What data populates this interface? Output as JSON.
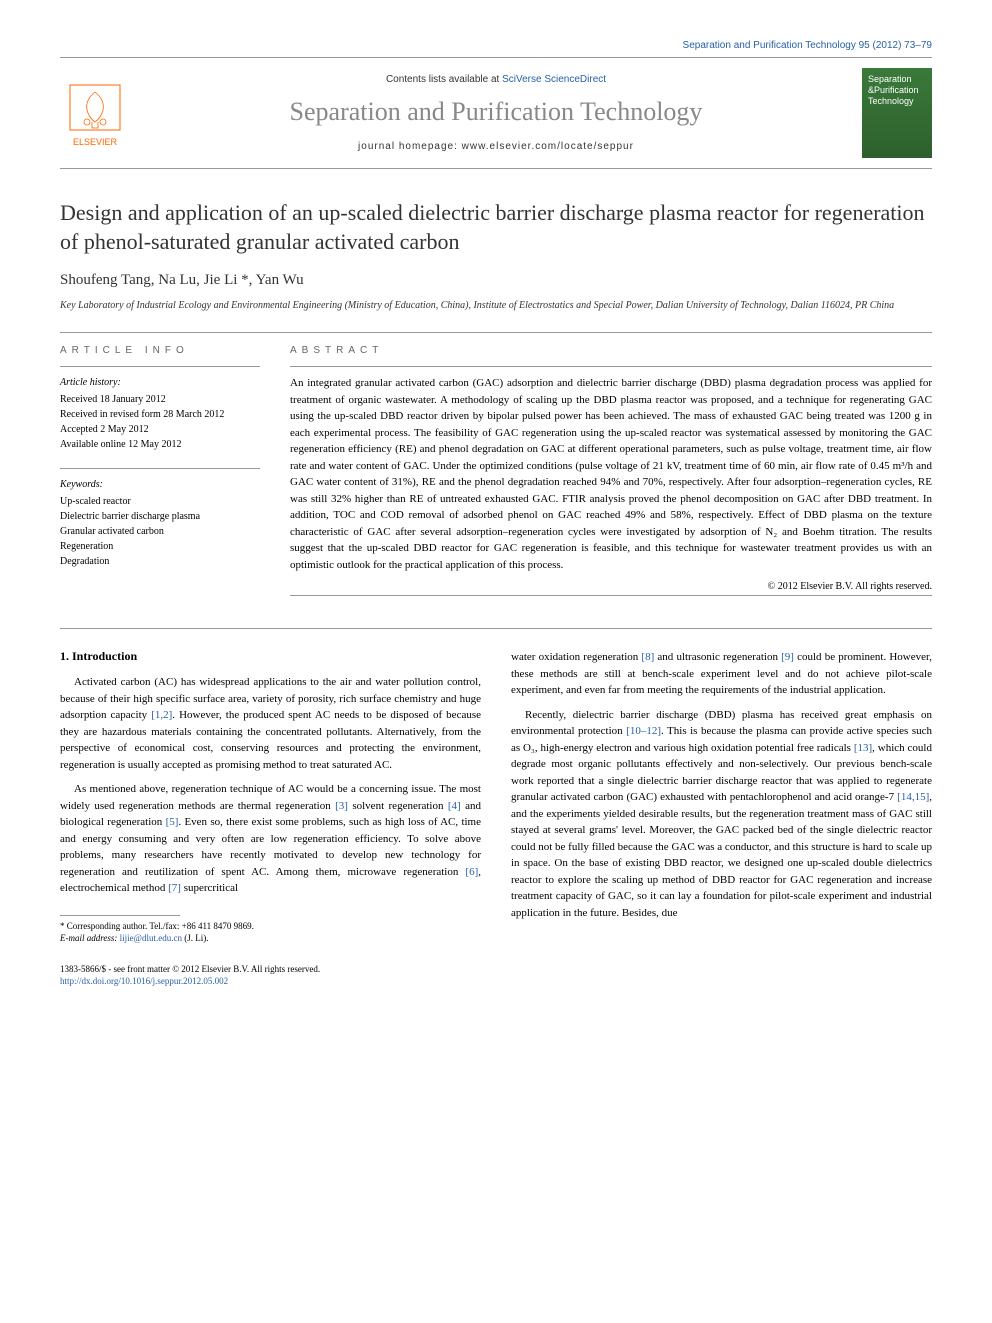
{
  "header": {
    "citation": "Separation and Purification Technology 95 (2012) 73–79",
    "contents_prefix": "Contents lists available at ",
    "contents_link": "SciVerse ScienceDirect",
    "journal_title": "Separation and Purification Technology",
    "homepage_label": "journal homepage: www.elsevier.com/locate/seppur",
    "publisher": "ELSEVIER",
    "cover_text": "Separation &Purification Technology"
  },
  "article": {
    "title": "Design and application of an up-scaled dielectric barrier discharge plasma reactor for regeneration of phenol-saturated granular activated carbon",
    "authors_html": "Shoufeng Tang, Na Lu, Jie Li *, Yan Wu",
    "affiliation": "Key Laboratory of Industrial Ecology and Environmental Engineering (Ministry of Education, China), Institute of Electrostatics and Special Power, Dalian University of Technology, Dalian 116024, PR China"
  },
  "info": {
    "heading": "ARTICLE INFO",
    "history_label": "Article history:",
    "history": [
      "Received 18 January 2012",
      "Received in revised form 28 March 2012",
      "Accepted 2 May 2012",
      "Available online 12 May 2012"
    ],
    "keywords_label": "Keywords:",
    "keywords": [
      "Up-scaled reactor",
      "Dielectric barrier discharge plasma",
      "Granular activated carbon",
      "Regeneration",
      "Degradation"
    ]
  },
  "abstract": {
    "heading": "ABSTRACT",
    "text": "An integrated granular activated carbon (GAC) adsorption and dielectric barrier discharge (DBD) plasma degradation process was applied for treatment of organic wastewater. A methodology of scaling up the DBD plasma reactor was proposed, and a technique for regenerating GAC using the up-scaled DBD reactor driven by bipolar pulsed power has been achieved. The mass of exhausted GAC being treated was 1200 g in each experimental process. The feasibility of GAC regeneration using the up-scaled reactor was systematical assessed by monitoring the GAC regeneration efficiency (RE) and phenol degradation on GAC at different operational parameters, such as pulse voltage, treatment time, air flow rate and water content of GAC. Under the optimized conditions (pulse voltage of 21 kV, treatment time of 60 min, air flow rate of 0.45 m³/h and GAC water content of 31%), RE and the phenol degradation reached 94% and 70%, respectively. After four adsorption–regeneration cycles, RE was still 32% higher than RE of untreated exhausted GAC. FTIR analysis proved the phenol decomposition on GAC after DBD treatment. In addition, TOC and COD removal of adsorbed phenol on GAC reached 49% and 58%, respectively. Effect of DBD plasma on the texture characteristic of GAC after several adsorption–regeneration cycles were investigated by adsorption of N₂ and Boehm titration. The results suggest that the up-scaled DBD reactor for GAC regeneration is feasible, and this technique for wastewater treatment provides us with an optimistic outlook for the practical application of this process.",
    "copyright": "© 2012 Elsevier B.V. All rights reserved."
  },
  "body": {
    "section1_heading": "1. Introduction",
    "p1": "Activated carbon (AC) has widespread applications to the air and water pollution control, because of their high specific surface area, variety of porosity, rich surface chemistry and huge adsorption capacity [1,2]. However, the produced spent AC needs to be disposed of because they are hazardous materials containing the concentrated pollutants. Alternatively, from the perspective of economical cost, conserving resources and protecting the environment, regeneration is usually accepted as promising method to treat saturated AC.",
    "p2": "As mentioned above, regeneration technique of AC would be a concerning issue. The most widely used regeneration methods are thermal regeneration [3] solvent regeneration [4] and biological regeneration [5]. Even so, there exist some problems, such as high loss of AC, time and energy consuming and very often are low regeneration efficiency. To solve above problems, many researchers have recently motivated to develop new technology for regeneration and reutilization of spent AC. Among them, microwave regeneration [6], electrochemical method [7] supercritical",
    "p3": "water oxidation regeneration [8] and ultrasonic regeneration [9] could be prominent. However, these methods are still at bench-scale experiment level and do not achieve pilot-scale experiment, and even far from meeting the requirements of the industrial application.",
    "p4": "Recently, dielectric barrier discharge (DBD) plasma has received great emphasis on environmental protection [10–12]. This is because the plasma can provide active species such as O₃, high-energy electron and various high oxidation potential free radicals [13], which could degrade most organic pollutants effectively and non-selectively. Our previous bench-scale work reported that a single dielectric barrier discharge reactor that was applied to regenerate granular activated carbon (GAC) exhausted with pentachlorophenol and acid orange-7 [14,15], and the experiments yielded desirable results, but the regeneration treatment mass of GAC still stayed at several grams' level. Moreover, the GAC packed bed of the single dielectric reactor could not be fully filled because the GAC was a conductor, and this structure is hard to scale up in space. On the base of existing DBD reactor, we designed one up-scaled double dielectrics reactor to explore the scaling up method of DBD reactor for GAC regeneration and increase treatment capacity of GAC, so it can lay a foundation for pilot-scale experiment and industrial application in the future. Besides, due"
  },
  "footnote": {
    "corr_label": "* Corresponding author. Tel./fax: +86 411 8470 9869.",
    "email_label": "E-mail address: ",
    "email": "lijie@dlut.edu.cn",
    "email_suffix": " (J. Li)."
  },
  "footer": {
    "issn": "1383-5866/$ - see front matter © 2012 Elsevier B.V. All rights reserved.",
    "doi_prefix": "http://dx.doi.org/",
    "doi": "10.1016/j.seppur.2012.05.002"
  },
  "refs": {
    "r1_2": "[1,2]",
    "r3": "[3]",
    "r4": "[4]",
    "r5": "[5]",
    "r6": "[6]",
    "r7": "[7]",
    "r8": "[8]",
    "r9": "[9]",
    "r10_12": "[10–12]",
    "r13": "[13]",
    "r14_15": "[14,15]"
  },
  "colors": {
    "link": "#2860a8",
    "elsevier_orange": "#ff6600",
    "cover_green": "#3a7a3a"
  }
}
